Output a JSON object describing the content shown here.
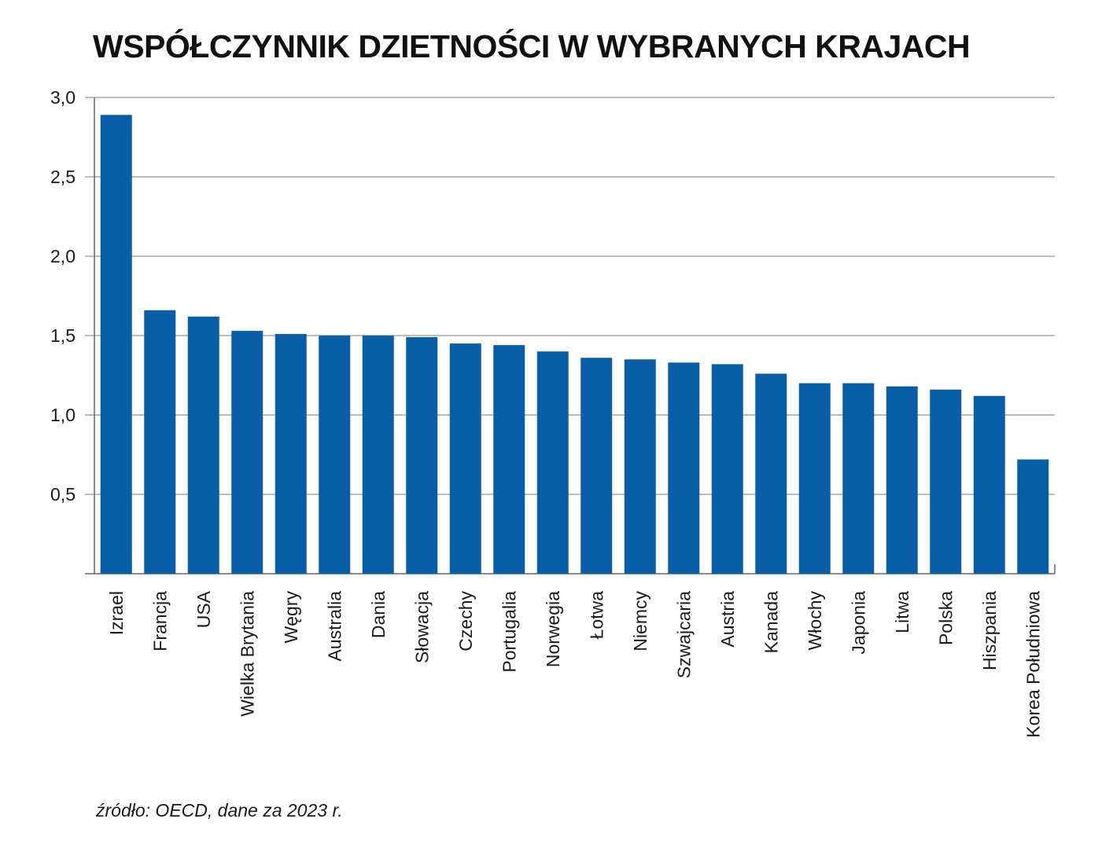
{
  "title": "WSPÓŁCZYNNIK DZIETNOŚCI W WYBRANYCH KRAJACH",
  "source": "źródło: OECD, dane za 2023 r.",
  "colors": {
    "bar": "#0a5ea8",
    "grid": "#a6a6a6",
    "axis": "#666666",
    "text": "#1a1a1a"
  },
  "chart_data": {
    "type": "bar",
    "title": "WSPÓŁCZYNNIK DZIETNOŚCI W WYBRANYCH KRAJACH",
    "xlabel": "",
    "ylabel": "",
    "ylim": [
      0,
      3.0
    ],
    "yticks": [
      0.5,
      1.0,
      1.5,
      2.0,
      2.5,
      3.0
    ],
    "ytick_labels": [
      "0,5",
      "1,0",
      "1,5",
      "2,0",
      "2,5",
      "3,0"
    ],
    "grid": true,
    "legend": "none",
    "categories": [
      "Izrael",
      "Francja",
      "USA",
      "Wielka Brytania",
      "Węgry",
      "Australia",
      "Dania",
      "Słowacja",
      "Czechy",
      "Portugalia",
      "Norwegia",
      "Łotwa",
      "Niemcy",
      "Szwajcaria",
      "Austria",
      "Kanada",
      "Włochy",
      "Japonia",
      "Litwa",
      "Polska",
      "Hiszpania",
      "Korea Południowa"
    ],
    "values": [
      2.89,
      1.66,
      1.62,
      1.53,
      1.51,
      1.5,
      1.5,
      1.49,
      1.45,
      1.44,
      1.4,
      1.36,
      1.35,
      1.33,
      1.32,
      1.26,
      1.2,
      1.2,
      1.18,
      1.16,
      1.12,
      0.72
    ]
  }
}
